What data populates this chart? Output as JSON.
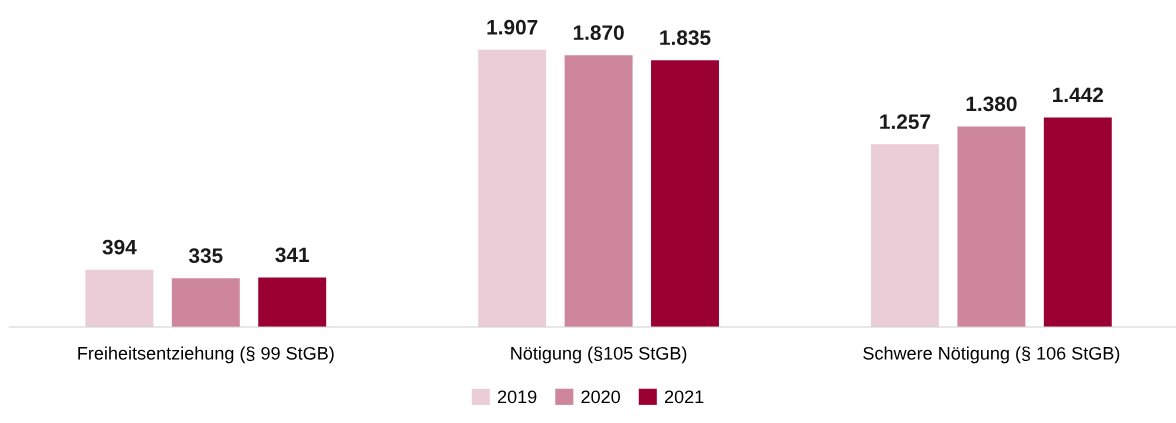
{
  "chart_data": {
    "type": "bar",
    "categories": [
      "Freiheitsentziehung (§ 99 StGB)",
      "Nötigung (§105 StGB)",
      "Schwere Nötigung (§ 106 StGB)"
    ],
    "series": [
      {
        "name": "2019",
        "color": "#ebcdd8",
        "values": [
          394,
          1907,
          1257
        ],
        "value_labels": [
          "394",
          "1.907",
          "1.257"
        ]
      },
      {
        "name": "2020",
        "color": "#cd869c",
        "values": [
          335,
          1870,
          1380
        ],
        "value_labels": [
          "335",
          "1.870",
          "1.380"
        ]
      },
      {
        "name": "2021",
        "color": "#9b0033",
        "values": [
          341,
          1835,
          1442
        ],
        "value_labels": [
          "341",
          "1.835",
          "1.442"
        ]
      }
    ],
    "grid": false,
    "legend": "bottom"
  }
}
